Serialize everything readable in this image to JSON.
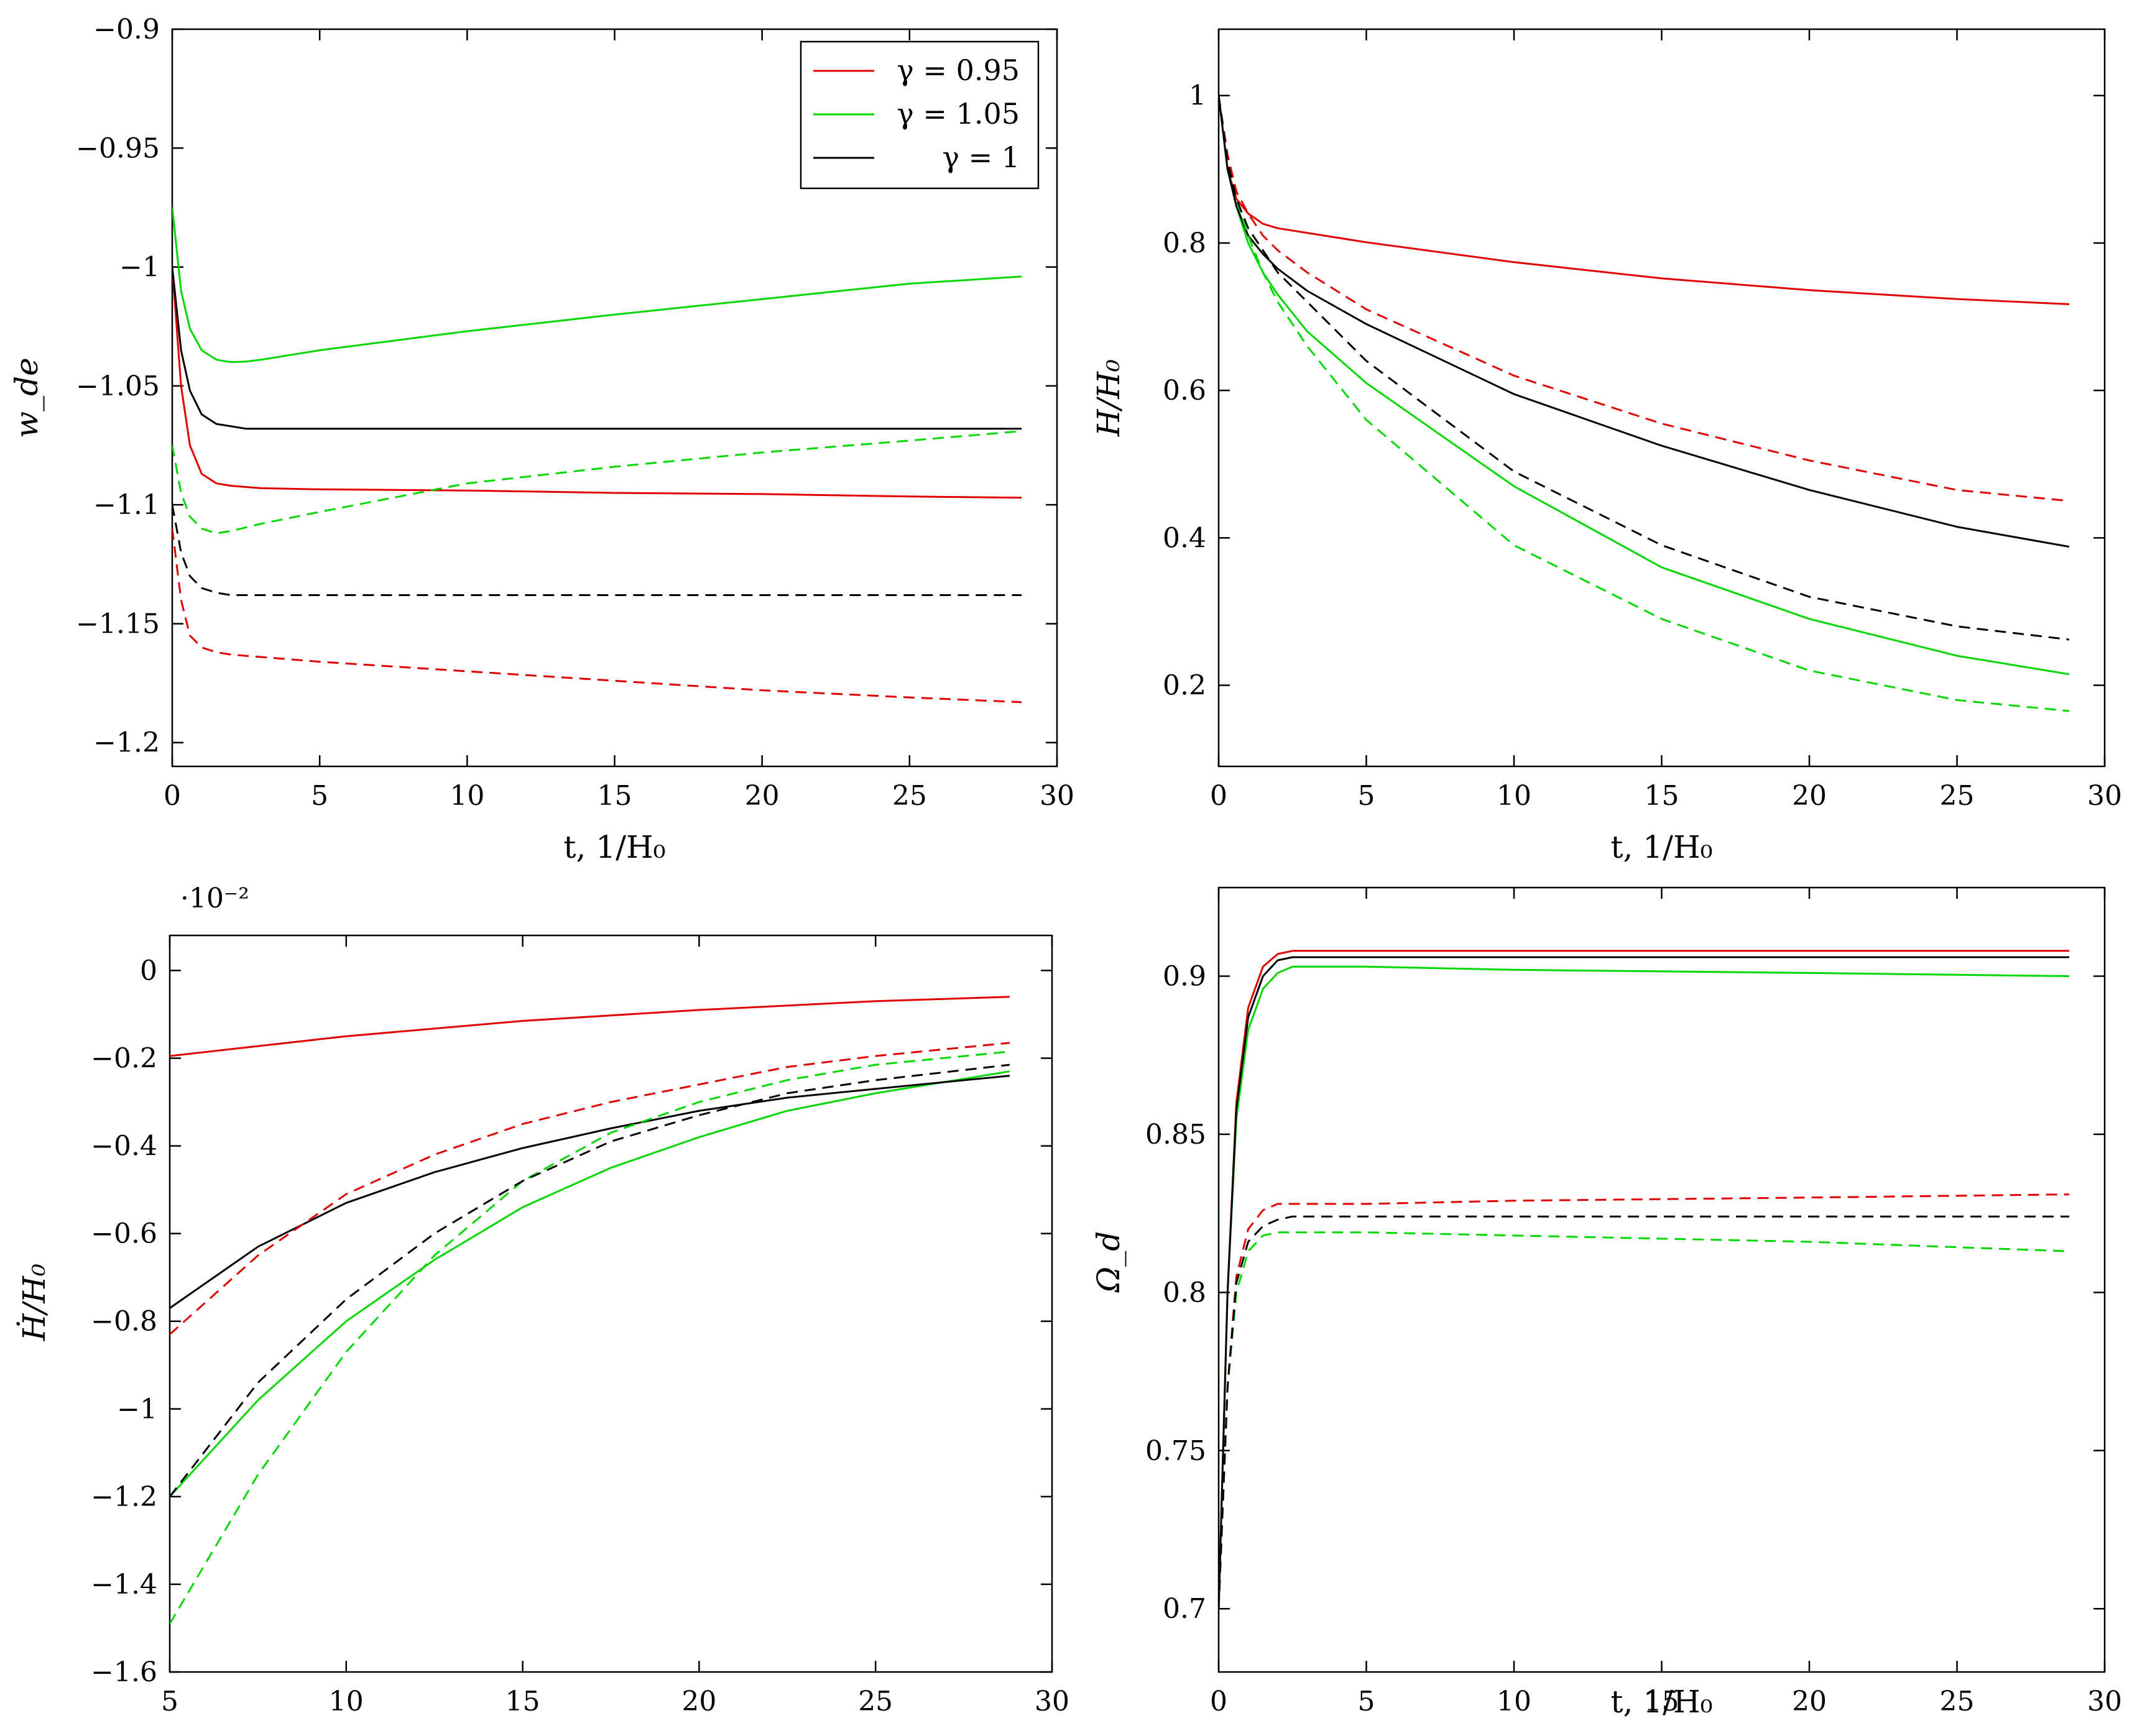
{
  "colors": {
    "red": "#e00000",
    "green": "#00d800",
    "black": "#000000"
  },
  "legend": {
    "entries": [
      {
        "label": "γ = 0.95",
        "color": "red"
      },
      {
        "label": "γ = 1.05",
        "color": "green"
      },
      {
        "label": "γ = 1",
        "color": "black"
      }
    ]
  },
  "chart_data": [
    {
      "id": "wde",
      "type": "line",
      "xlabel": "t, 1/H₀",
      "ylabel": "w_de",
      "xlim": [
        0,
        30
      ],
      "ylim": [
        -1.21,
        -0.9
      ],
      "xticks": [
        0,
        5,
        10,
        15,
        20,
        25,
        30
      ],
      "xtick_labels": [
        "0",
        "5",
        "10",
        "15",
        "20",
        "25",
        "30"
      ],
      "yticks": [
        -0.9,
        -0.95,
        -1,
        -1.05,
        -1.1,
        -1.15,
        -1.2
      ],
      "ytick_labels": [
        "−0.9",
        "−0.95",
        "−1",
        "−1.05",
        "−1.1",
        "−1.15",
        "−1.2"
      ],
      "legend": true,
      "series": [
        {
          "name": "γ = 0.95",
          "color": "red",
          "dash": false,
          "x": [
            0,
            0.3,
            0.6,
            1,
            1.5,
            2,
            3,
            5,
            10,
            15,
            20,
            25,
            28.8
          ],
          "y": [
            -1.0,
            -1.05,
            -1.075,
            -1.087,
            -1.091,
            -1.092,
            -1.093,
            -1.0935,
            -1.094,
            -1.095,
            -1.0955,
            -1.0965,
            -1.097
          ]
        },
        {
          "name": "γ = 1.05",
          "color": "green",
          "dash": false,
          "x": [
            0,
            0.3,
            0.6,
            1,
            1.5,
            2,
            2.5,
            3,
            5,
            10,
            15,
            20,
            25,
            28.8
          ],
          "y": [
            -0.975,
            -1.01,
            -1.026,
            -1.035,
            -1.039,
            -1.04,
            -1.0398,
            -1.039,
            -1.035,
            -1.027,
            -1.02,
            -1.0135,
            -1.007,
            -1.004
          ]
        },
        {
          "name": "γ = 1",
          "color": "black",
          "dash": false,
          "x": [
            0,
            0.3,
            0.6,
            1,
            1.5,
            2,
            2.5,
            3,
            10,
            20,
            28.8
          ],
          "y": [
            -1.0,
            -1.035,
            -1.052,
            -1.062,
            -1.066,
            -1.067,
            -1.068,
            -1.068,
            -1.068,
            -1.068,
            -1.068
          ]
        },
        {
          "name": "γ = 0.95 (dashed)",
          "color": "red",
          "dash": true,
          "x": [
            0,
            0.3,
            0.6,
            1,
            1.5,
            2,
            3,
            5,
            10,
            15,
            20,
            25,
            28.8
          ],
          "y": [
            -1.11,
            -1.14,
            -1.155,
            -1.16,
            -1.162,
            -1.163,
            -1.164,
            -1.166,
            -1.17,
            -1.174,
            -1.178,
            -1.181,
            -1.183
          ]
        },
        {
          "name": "γ = 1.05 (dashed)",
          "color": "green",
          "dash": true,
          "x": [
            0,
            0.3,
            0.6,
            1,
            1.5,
            2,
            3,
            5,
            10,
            15,
            20,
            25,
            28.8
          ],
          "y": [
            -1.075,
            -1.095,
            -1.105,
            -1.11,
            -1.112,
            -1.111,
            -1.108,
            -1.103,
            -1.091,
            -1.084,
            -1.078,
            -1.073,
            -1.069
          ]
        },
        {
          "name": "γ = 1 (dashed)",
          "color": "black",
          "dash": true,
          "x": [
            0,
            0.3,
            0.6,
            1,
            1.5,
            2,
            3,
            10,
            20,
            28.8
          ],
          "y": [
            -1.1,
            -1.12,
            -1.13,
            -1.135,
            -1.137,
            -1.138,
            -1.138,
            -1.138,
            -1.138,
            -1.138
          ]
        }
      ]
    },
    {
      "id": "H",
      "type": "line",
      "xlabel": "t, 1/H₀",
      "ylabel": "H/H₀",
      "xlim": [
        0,
        30
      ],
      "ylim": [
        0.09,
        1.09
      ],
      "xticks": [
        0,
        5,
        10,
        15,
        20,
        25,
        30
      ],
      "xtick_labels": [
        "0",
        "5",
        "10",
        "15",
        "20",
        "25",
        "30"
      ],
      "yticks": [
        0.2,
        0.4,
        0.6,
        0.8,
        1
      ],
      "ytick_labels": [
        "0.2",
        "0.4",
        "0.6",
        "0.8",
        "1"
      ],
      "legend": false,
      "series": [
        {
          "name": "γ = 0.95",
          "color": "red",
          "dash": false,
          "x": [
            0,
            0.3,
            0.6,
            1,
            1.5,
            2,
            5,
            10,
            15,
            20,
            25,
            28.8
          ],
          "y": [
            1.0,
            0.9,
            0.86,
            0.84,
            0.826,
            0.82,
            0.801,
            0.774,
            0.752,
            0.736,
            0.724,
            0.717
          ]
        },
        {
          "name": "γ = 1.05",
          "color": "green",
          "dash": false,
          "x": [
            0,
            0.3,
            0.6,
            1,
            1.5,
            2,
            3,
            5,
            10,
            15,
            20,
            25,
            28.8
          ],
          "y": [
            1.0,
            0.9,
            0.85,
            0.8,
            0.76,
            0.73,
            0.68,
            0.61,
            0.47,
            0.36,
            0.29,
            0.24,
            0.215
          ]
        },
        {
          "name": "γ = 1",
          "color": "black",
          "dash": false,
          "x": [
            0,
            0.3,
            0.6,
            1,
            1.5,
            2,
            3,
            5,
            10,
            15,
            20,
            25,
            28.8
          ],
          "y": [
            1.0,
            0.9,
            0.85,
            0.81,
            0.785,
            0.765,
            0.735,
            0.69,
            0.595,
            0.525,
            0.465,
            0.415,
            0.388
          ]
        },
        {
          "name": "γ = 0.95 (dashed)",
          "color": "red",
          "dash": true,
          "x": [
            0,
            0.3,
            0.6,
            1,
            1.5,
            2,
            3,
            5,
            10,
            15,
            20,
            25,
            28.8
          ],
          "y": [
            1.0,
            0.92,
            0.87,
            0.84,
            0.81,
            0.79,
            0.76,
            0.71,
            0.62,
            0.555,
            0.505,
            0.465,
            0.45
          ]
        },
        {
          "name": "γ = 1.05 (dashed)",
          "color": "green",
          "dash": true,
          "x": [
            0,
            0.3,
            0.6,
            1,
            1.5,
            2,
            3,
            5,
            10,
            15,
            20,
            25,
            28.8
          ],
          "y": [
            1.0,
            0.91,
            0.86,
            0.81,
            0.76,
            0.72,
            0.66,
            0.56,
            0.39,
            0.29,
            0.22,
            0.18,
            0.165
          ]
        },
        {
          "name": "γ = 1 (dashed)",
          "color": "black",
          "dash": true,
          "x": [
            0,
            0.3,
            0.6,
            1,
            1.5,
            2,
            3,
            5,
            10,
            15,
            20,
            25,
            28.8
          ],
          "y": [
            1.0,
            0.91,
            0.86,
            0.82,
            0.79,
            0.76,
            0.72,
            0.64,
            0.49,
            0.39,
            0.32,
            0.28,
            0.262
          ]
        }
      ]
    },
    {
      "id": "Hdot",
      "type": "line",
      "xlabel": "",
      "ylabel": "Ḣ/H₀",
      "scale_label": "·10⁻²",
      "xlim": [
        5,
        30
      ],
      "ylim": [
        -1.6,
        0.08
      ],
      "xticks": [
        5,
        10,
        15,
        20,
        25,
        30
      ],
      "xtick_labels": [
        "5",
        "10",
        "15",
        "20",
        "25",
        "30"
      ],
      "yticks": [
        0,
        -0.2,
        -0.4,
        -0.6,
        -0.8,
        -1,
        -1.2,
        -1.4,
        -1.6
      ],
      "ytick_labels": [
        "0",
        "−0.2",
        "−0.4",
        "−0.6",
        "−0.8",
        "−1",
        "−1.2",
        "−1.4",
        "−1.6"
      ],
      "legend": false,
      "series": [
        {
          "name": "γ = 0.95",
          "color": "red",
          "dash": false,
          "x": [
            5,
            10,
            15,
            20,
            25,
            28.8
          ],
          "y": [
            -0.195,
            -0.15,
            -0.115,
            -0.09,
            -0.07,
            -0.06
          ]
        },
        {
          "name": "γ = 1.05",
          "color": "green",
          "dash": false,
          "x": [
            5,
            7.5,
            10,
            12.5,
            15,
            17.5,
            20,
            22.5,
            25,
            28.8
          ],
          "y": [
            -1.2,
            -0.98,
            -0.8,
            -0.66,
            -0.54,
            -0.45,
            -0.38,
            -0.32,
            -0.28,
            -0.23
          ]
        },
        {
          "name": "γ = 1",
          "color": "black",
          "dash": false,
          "x": [
            5,
            7.5,
            10,
            12.5,
            15,
            17.5,
            20,
            22.5,
            25,
            28.8
          ],
          "y": [
            -0.77,
            -0.63,
            -0.53,
            -0.46,
            -0.405,
            -0.36,
            -0.32,
            -0.29,
            -0.27,
            -0.24
          ]
        },
        {
          "name": "γ = 0.95 (dashed)",
          "color": "red",
          "dash": true,
          "x": [
            5,
            7.5,
            10,
            12.5,
            15,
            17.5,
            20,
            22.5,
            25,
            28.8
          ],
          "y": [
            -0.83,
            -0.65,
            -0.51,
            -0.42,
            -0.35,
            -0.3,
            -0.26,
            -0.22,
            -0.195,
            -0.165
          ]
        },
        {
          "name": "γ = 1.05 (dashed)",
          "color": "green",
          "dash": true,
          "x": [
            5,
            7.5,
            10,
            12.5,
            15,
            17.5,
            20,
            22.5,
            25,
            28.8
          ],
          "y": [
            -1.49,
            -1.15,
            -0.87,
            -0.65,
            -0.48,
            -0.37,
            -0.3,
            -0.25,
            -0.215,
            -0.185
          ]
        },
        {
          "name": "γ = 1 (dashed)",
          "color": "black",
          "dash": true,
          "x": [
            5,
            7.5,
            10,
            12.5,
            15,
            17.5,
            20,
            22.5,
            25,
            28.8
          ],
          "y": [
            -1.2,
            -0.94,
            -0.75,
            -0.6,
            -0.48,
            -0.39,
            -0.33,
            -0.28,
            -0.25,
            -0.215
          ]
        }
      ]
    },
    {
      "id": "Omega",
      "type": "line",
      "xlabel": "t, 1/H₀",
      "ylabel": "Ω_d",
      "xlim": [
        0,
        30
      ],
      "ylim": [
        0.68,
        0.928
      ],
      "xticks": [
        0,
        5,
        10,
        15,
        20,
        25,
        30
      ],
      "xtick_labels": [
        "0",
        "5",
        "10",
        "15",
        "20",
        "25",
        "30"
      ],
      "yticks": [
        0.7,
        0.75,
        0.8,
        0.85,
        0.9
      ],
      "ytick_labels": [
        "0.7",
        "0.75",
        "0.8",
        "0.85",
        "0.9"
      ],
      "legend": false,
      "series": [
        {
          "name": "γ = 0.95",
          "color": "red",
          "dash": false,
          "x": [
            0,
            0.3,
            0.6,
            1,
            1.5,
            2,
            2.5,
            3,
            5,
            10,
            20,
            28.8
          ],
          "y": [
            0.7,
            0.8,
            0.86,
            0.89,
            0.903,
            0.907,
            0.908,
            0.908,
            0.908,
            0.908,
            0.908,
            0.908
          ]
        },
        {
          "name": "γ = 1.05",
          "color": "green",
          "dash": false,
          "x": [
            0,
            0.3,
            0.6,
            1,
            1.5,
            2,
            2.5,
            3,
            5,
            10,
            20,
            28.8
          ],
          "y": [
            0.7,
            0.8,
            0.855,
            0.883,
            0.896,
            0.901,
            0.903,
            0.903,
            0.903,
            0.902,
            0.901,
            0.9
          ]
        },
        {
          "name": "γ = 1",
          "color": "black",
          "dash": false,
          "x": [
            0,
            0.3,
            0.6,
            1,
            1.5,
            2,
            2.5,
            3,
            5,
            10,
            20,
            28.8
          ],
          "y": [
            0.7,
            0.8,
            0.858,
            0.887,
            0.9,
            0.905,
            0.906,
            0.906,
            0.906,
            0.906,
            0.906,
            0.906
          ]
        },
        {
          "name": "γ = 0.95 (dashed)",
          "color": "red",
          "dash": true,
          "x": [
            0,
            0.3,
            0.6,
            1,
            1.5,
            2,
            2.5,
            3,
            5,
            10,
            20,
            28.8
          ],
          "y": [
            0.7,
            0.77,
            0.805,
            0.82,
            0.826,
            0.828,
            0.828,
            0.828,
            0.828,
            0.829,
            0.83,
            0.831
          ]
        },
        {
          "name": "γ = 1.05 (dashed)",
          "color": "green",
          "dash": true,
          "x": [
            0,
            0.3,
            0.6,
            1,
            1.5,
            2,
            2.5,
            3,
            5,
            10,
            20,
            28.8
          ],
          "y": [
            0.7,
            0.77,
            0.8,
            0.813,
            0.818,
            0.819,
            0.819,
            0.819,
            0.819,
            0.818,
            0.816,
            0.813
          ]
        },
        {
          "name": "γ = 1 (dashed)",
          "color": "black",
          "dash": true,
          "x": [
            0,
            0.3,
            0.6,
            1,
            1.5,
            2,
            2.5,
            3,
            5,
            10,
            20,
            28.8
          ],
          "y": [
            0.7,
            0.77,
            0.803,
            0.816,
            0.821,
            0.823,
            0.824,
            0.824,
            0.824,
            0.824,
            0.824,
            0.824
          ]
        }
      ]
    }
  ]
}
